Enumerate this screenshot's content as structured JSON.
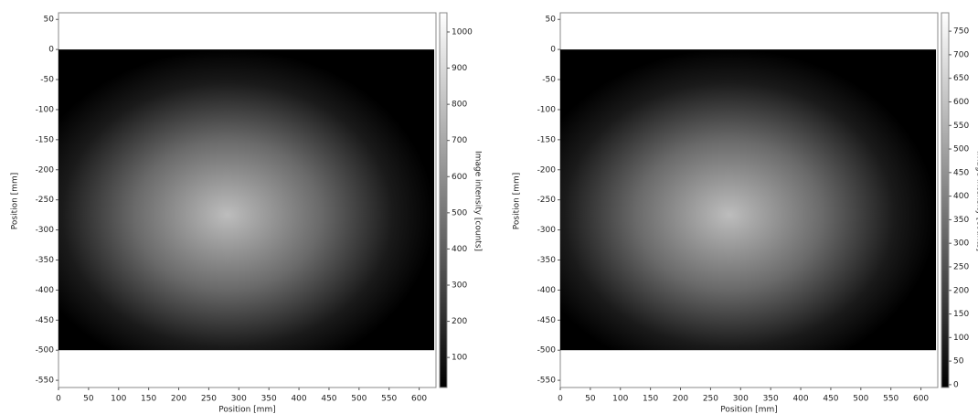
{
  "chart_data": [
    {
      "type": "image",
      "x_label": "Position [mm]",
      "y_label": "Position [mm]",
      "colorbar_label": "Image intensity [counts]",
      "xlim": [
        0,
        628
      ],
      "ylim": [
        -562,
        61
      ],
      "extent": [
        0,
        625,
        -500,
        0
      ],
      "xticks": [
        0,
        50,
        100,
        150,
        200,
        250,
        300,
        350,
        400,
        450,
        500,
        550,
        600
      ],
      "yticks": [
        50,
        0,
        -50,
        -100,
        -150,
        -200,
        -250,
        -300,
        -350,
        -400,
        -450,
        -500,
        -550
      ],
      "colorbar_lim": [
        17,
        1053
      ],
      "colorbar_ticks": [
        100,
        200,
        300,
        400,
        500,
        600,
        700,
        800,
        900,
        1000
      ]
    },
    {
      "type": "image",
      "x_label": "Position [mm]",
      "y_label": "Position [mm]",
      "colorbar_label": "Image intensity [counts]",
      "xlim": [
        0,
        628
      ],
      "ylim": [
        -562,
        61
      ],
      "extent": [
        0,
        625,
        -500,
        0
      ],
      "xticks": [
        0,
        50,
        100,
        150,
        200,
        250,
        300,
        350,
        400,
        450,
        500,
        550,
        600
      ],
      "yticks": [
        50,
        0,
        -50,
        -100,
        -150,
        -200,
        -250,
        -300,
        -350,
        -400,
        -450,
        -500,
        -550
      ],
      "colorbar_lim": [
        -6,
        789
      ],
      "colorbar_ticks": [
        0,
        50,
        100,
        150,
        200,
        250,
        300,
        350,
        400,
        450,
        500,
        550,
        600,
        650,
        700,
        750
      ]
    }
  ]
}
